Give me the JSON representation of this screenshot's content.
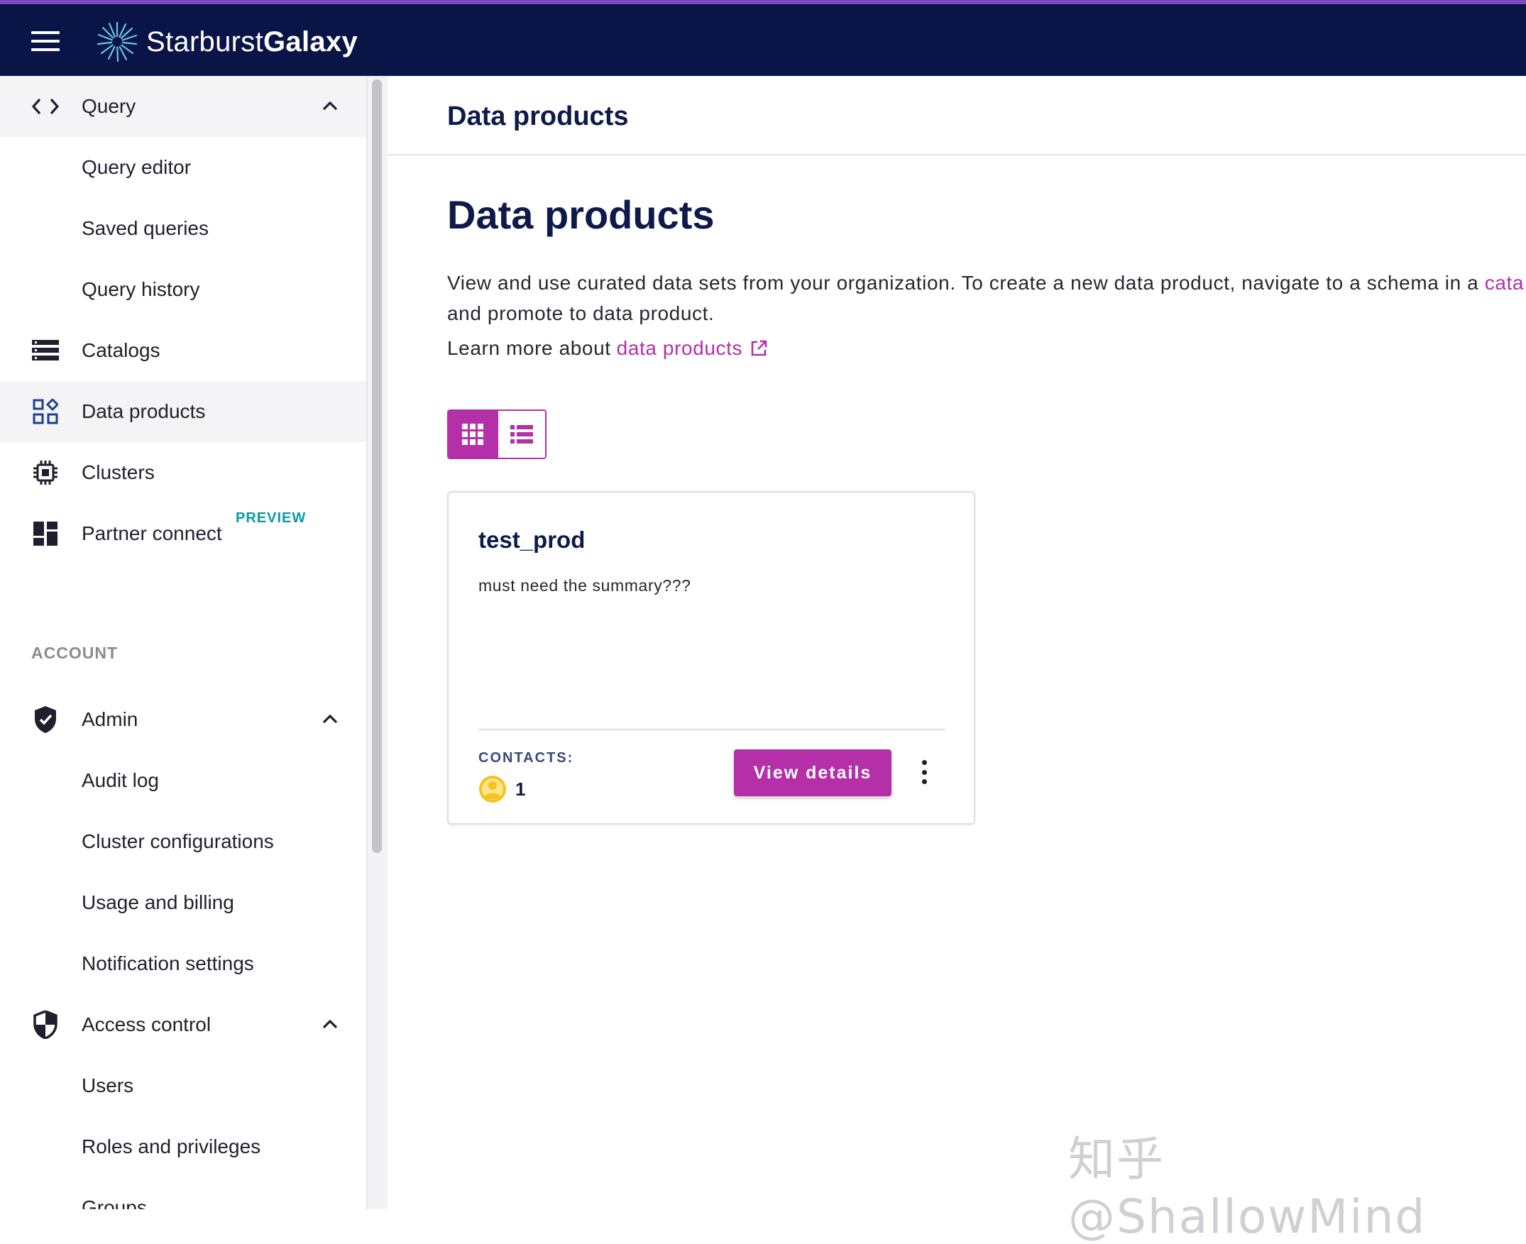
{
  "app": {
    "logo_text_light": "Starburst",
    "logo_text_bold": "Galaxy"
  },
  "sidebar": {
    "query_group": {
      "label": "Query",
      "icon": "code-icon",
      "expanded": true
    },
    "query_items": [
      {
        "label": "Query editor"
      },
      {
        "label": "Saved queries"
      },
      {
        "label": "Query history"
      }
    ],
    "catalogs": {
      "label": "Catalogs",
      "icon": "catalog-list-icon"
    },
    "data_products": {
      "label": "Data products",
      "icon": "data-products-icon",
      "active": true
    },
    "clusters": {
      "label": "Clusters",
      "icon": "cpu-chip-icon"
    },
    "partner_connect": {
      "label": "Partner connect",
      "badge": "PREVIEW",
      "icon": "dashboard-icon"
    },
    "account_section": "ACCOUNT",
    "admin_group": {
      "label": "Admin",
      "icon": "shield-check-icon",
      "expanded": true
    },
    "admin_items": [
      {
        "label": "Audit log"
      },
      {
        "label": "Cluster configurations"
      },
      {
        "label": "Usage and billing"
      },
      {
        "label": "Notification settings"
      }
    ],
    "access_group": {
      "label": "Access control",
      "icon": "shield-half-icon",
      "expanded": true
    },
    "access_items": [
      {
        "label": "Users"
      },
      {
        "label": "Roles and privileges"
      },
      {
        "label": "Groups"
      }
    ]
  },
  "main": {
    "header_title": "Data products",
    "page_title": "Data products",
    "description_line1": "View and use curated data sets from your organization. To create a new data product, navigate to a schema in a ",
    "description_link": "cata",
    "description_line2": "and promote to data product.",
    "learn_prefix": "Learn more about",
    "learn_link": "data products",
    "view_toggle": {
      "selected": "grid"
    },
    "card": {
      "title": "test_prod",
      "description": "must need the summary???",
      "contacts_label": "CONTACTS:",
      "contacts_count": "1",
      "button": "View details"
    }
  },
  "watermark": "知乎 @ShallowMind",
  "colors": {
    "topbar": "#0a1547",
    "accent": "#b52fa8",
    "title": "#0e1a4a",
    "preview_badge": "#0a9aa0"
  }
}
